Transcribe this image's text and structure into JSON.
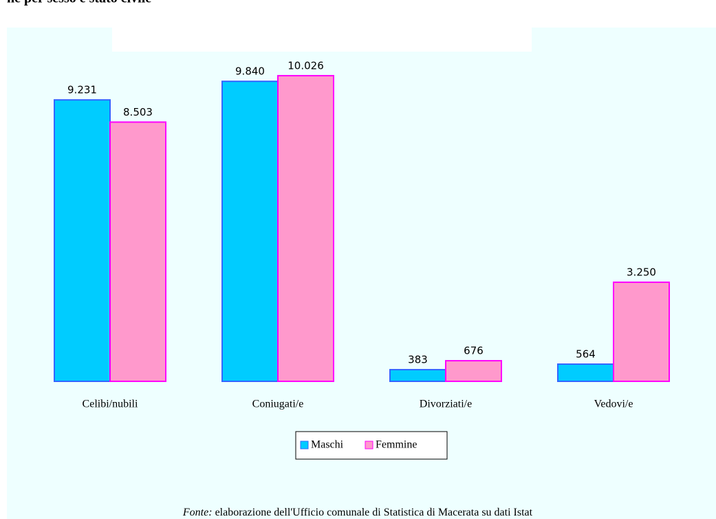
{
  "chart_data": {
    "type": "bar",
    "title": "ne per sesso e stato civile",
    "categories": [
      "Celibi/nubili",
      "Coniugati/e",
      "Divorziati/e",
      "Vedovi/e"
    ],
    "series": [
      {
        "name": "Maschi",
        "color": "#00ccff",
        "stroke": "#3366ff",
        "values": [
          9231,
          9840,
          383,
          564
        ],
        "value_labels": [
          "9.231",
          "9.840",
          "383",
          "564"
        ]
      },
      {
        "name": "Femmine",
        "color": "#ff99cc",
        "stroke": "#ff00ff",
        "values": [
          8503,
          10026,
          676,
          3250
        ],
        "value_labels": [
          "8.503",
          "10.026",
          "676",
          "3.250"
        ]
      }
    ],
    "ylim": [
      0,
      11000
    ],
    "legend": "bottom",
    "source_label": "Fonte:",
    "source": "elaborazione dell'Ufficio comunale di Statistica di Macerata su dati Istat"
  }
}
